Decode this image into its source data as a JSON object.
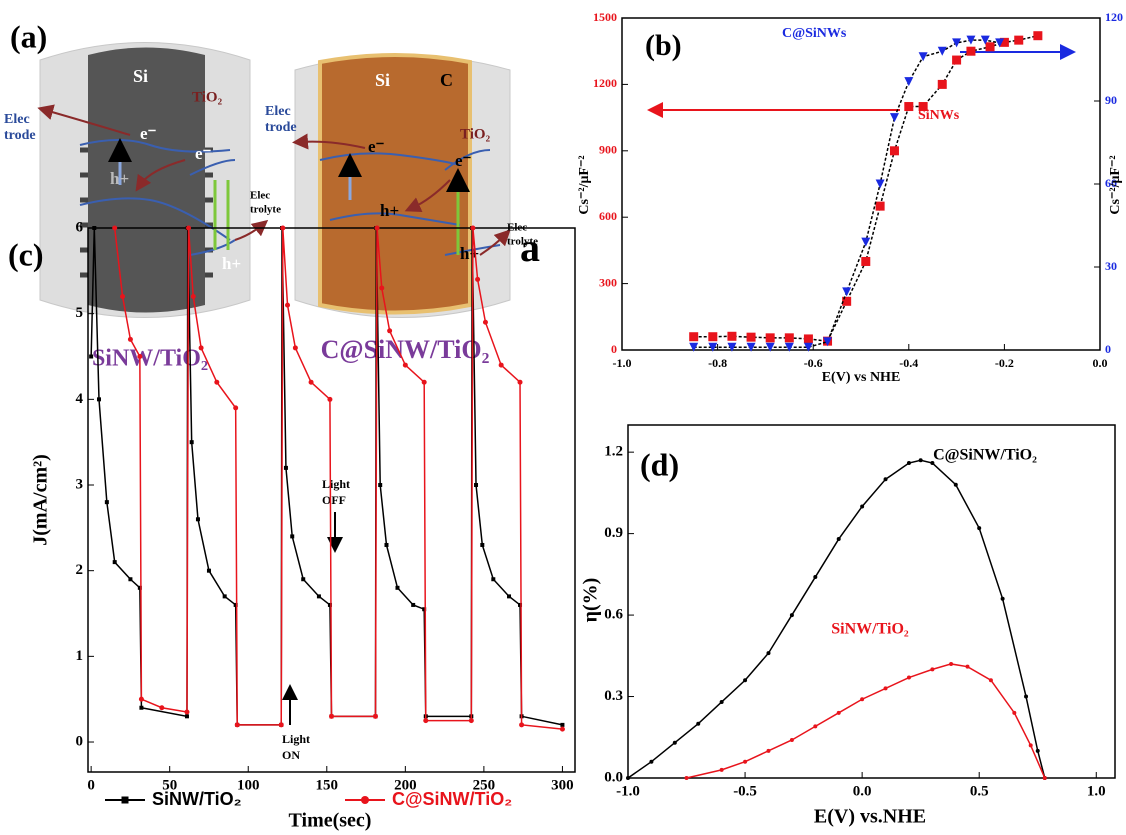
{
  "diagram": {
    "label": "(a)",
    "cylinders": [
      {
        "core": "Si",
        "shell": "TiO₂",
        "electrode": [
          "Elec",
          "trode"
        ],
        "electrolyte": [
          "Elec",
          "trolyte"
        ],
        "electrons": [
          "e⁻",
          "e⁻"
        ],
        "holes": [
          "h+",
          "h+"
        ],
        "caption": "SiNW/TiO₂"
      },
      {
        "core": "Si",
        "coating": "C",
        "shell": "TiO₂",
        "electrode": [
          "Elec",
          "trode"
        ],
        "electrolyte": [
          "Elec",
          "trolyte"
        ],
        "electrons": [
          "e⁻",
          "e⁻"
        ],
        "holes": [
          "h+",
          "h+"
        ],
        "caption": "C@SiNW/TiO₂"
      }
    ]
  },
  "chart_data": [
    {
      "type": "scatter-line",
      "xlabel": "E(V) vs NHE",
      "ylabel": "Cs⁻²/μF⁻²",
      "y2label": "Cs⁻²/μF⁻²",
      "annotations": [
        "(b)",
        "C@SiNWs",
        "SiNWs"
      ],
      "xlim": [
        -1,
        0
      ],
      "ylim": [
        0,
        1500
      ],
      "y2lim": [
        0,
        120
      ],
      "xticks": [
        {
          "value": -1,
          "label": "-1.0"
        },
        -0.8,
        -0.6,
        -0.4,
        -0.2,
        {
          "value": 0,
          "label": "0.0"
        }
      ],
      "yticks": [
        0,
        300,
        600,
        900,
        1200,
        1500
      ],
      "y2ticks": [
        0,
        30,
        60,
        90,
        120
      ],
      "series": [
        {
          "name": "SiNWs",
          "color": "#e8141c",
          "marker": "square",
          "axis": "y",
          "x": [
            -0.85,
            -0.81,
            -0.77,
            -0.73,
            -0.69,
            -0.65,
            -0.61,
            -0.57,
            -0.53,
            -0.49,
            -0.46,
            -0.43,
            -0.4,
            -0.37,
            -0.33,
            -0.3,
            -0.27,
            -0.23,
            -0.2,
            -0.17,
            -0.13
          ],
          "values": [
            60,
            60,
            62,
            58,
            55,
            55,
            50,
            40,
            220,
            400,
            650,
            900,
            1100,
            1100,
            1200,
            1310,
            1350,
            1370,
            1390,
            1400,
            1420
          ]
        },
        {
          "name": "C@SiNWs",
          "color": "#1a2ae0",
          "marker": "triangle",
          "axis": "y2",
          "x": [
            -0.85,
            -0.81,
            -0.77,
            -0.73,
            -0.69,
            -0.65,
            -0.61,
            -0.57,
            -0.53,
            -0.49,
            -0.46,
            -0.43,
            -0.4,
            -0.37,
            -0.33,
            -0.3,
            -0.27,
            -0.24,
            -0.21
          ],
          "values": [
            1,
            1,
            1,
            1,
            1,
            1,
            1,
            3,
            21,
            39,
            60,
            84,
            97,
            106,
            108,
            111,
            112,
            112,
            111
          ]
        }
      ]
    },
    {
      "type": "line",
      "xlabel": "Time(sec)",
      "ylabel": "J(mA/cm²)",
      "legend": "bottom",
      "annotations": [
        "(c)",
        "a",
        "Light",
        "OFF",
        "Light",
        "ON"
      ],
      "xlim": [
        -2,
        308
      ],
      "ylim": [
        -0.35,
        6
      ],
      "xticks": [
        0,
        50,
        100,
        150,
        200,
        250,
        300
      ],
      "yticks": [
        0,
        1,
        2,
        3,
        4,
        5,
        6
      ],
      "series": [
        {
          "name": "SiNW/TiO₂",
          "color": "#000000",
          "marker": "square",
          "x": [
            0,
            2,
            5,
            10,
            15,
            25,
            31,
            32,
            61,
            61.5,
            64,
            68,
            75,
            85,
            92,
            93,
            121,
            121.5,
            124,
            128,
            135,
            145,
            152,
            153,
            181,
            181.5,
            184,
            188,
            195,
            205,
            212,
            213,
            242,
            242.5,
            245,
            249,
            256,
            266,
            273,
            274,
            300
          ],
          "values": [
            4.5,
            6,
            4,
            2.8,
            2.1,
            1.9,
            1.8,
            0.4,
            0.3,
            6,
            3.5,
            2.6,
            2,
            1.7,
            1.6,
            0.2,
            0.2,
            6,
            3.2,
            2.4,
            1.9,
            1.7,
            1.6,
            0.3,
            0.3,
            6,
            3,
            2.3,
            1.8,
            1.6,
            1.55,
            0.3,
            0.3,
            6,
            3,
            2.3,
            1.9,
            1.7,
            1.6,
            0.3,
            0.2
          ]
        },
        {
          "name": "C@SiNW/TiO₂",
          "color": "#e8141c",
          "marker": "circle",
          "x": [
            15,
            20,
            25,
            31,
            32,
            45,
            61,
            62,
            65,
            70,
            80,
            92,
            93,
            121,
            122,
            125,
            130,
            140,
            152,
            153,
            181,
            182,
            185,
            190,
            200,
            212,
            213,
            242,
            243,
            246,
            251,
            261,
            273,
            274,
            300
          ],
          "values": [
            6,
            5.2,
            4.7,
            4.5,
            0.5,
            0.4,
            0.35,
            6,
            5.2,
            4.6,
            4.2,
            3.9,
            0.2,
            0.2,
            6,
            5.1,
            4.6,
            4.2,
            4,
            0.3,
            0.3,
            6,
            5.3,
            4.8,
            4.4,
            4.2,
            0.25,
            0.25,
            6,
            5.4,
            4.9,
            4.4,
            4.2,
            0.2,
            0.15
          ]
        }
      ]
    },
    {
      "type": "line",
      "xlabel": "E(V) vs.NHE",
      "ylabel": "η(%)",
      "annotations": [
        "(d)"
      ],
      "xlim": [
        -1,
        1.08
      ],
      "ylim": [
        0,
        1.3
      ],
      "xticks": [
        {
          "value": -1,
          "label": "-1.0"
        },
        -0.5,
        {
          "value": 0,
          "label": "0.0"
        },
        0.5,
        {
          "value": 1,
          "label": "1.0"
        }
      ],
      "yticks": [
        {
          "value": 0,
          "label": "0.0"
        },
        0.3,
        0.6,
        0.9,
        1.2
      ],
      "series": [
        {
          "name": "C@SiNW/TiO₂",
          "color": "#000000",
          "marker": "circle",
          "x": [
            -1,
            -0.9,
            -0.8,
            -0.7,
            -0.6,
            -0.5,
            -0.4,
            -0.3,
            -0.2,
            -0.1,
            0,
            0.1,
            0.2,
            0.25,
            0.3,
            0.4,
            0.5,
            0.6,
            0.7,
            0.75,
            0.78
          ],
          "values": [
            0,
            0.06,
            0.13,
            0.2,
            0.28,
            0.36,
            0.46,
            0.6,
            0.74,
            0.88,
            1,
            1.1,
            1.16,
            1.17,
            1.16,
            1.08,
            0.92,
            0.66,
            0.3,
            0.1,
            0
          ]
        },
        {
          "name": "SiNW/TiO₂",
          "color": "#e8141c",
          "marker": "circle",
          "x": [
            -0.75,
            -0.6,
            -0.5,
            -0.4,
            -0.3,
            -0.2,
            -0.1,
            0,
            0.1,
            0.2,
            0.3,
            0.38,
            0.45,
            0.55,
            0.65,
            0.72,
            0.78
          ],
          "values": [
            0,
            0.03,
            0.06,
            0.1,
            0.14,
            0.19,
            0.24,
            0.29,
            0.33,
            0.37,
            0.4,
            0.42,
            0.41,
            0.36,
            0.24,
            0.12,
            0
          ]
        }
      ]
    }
  ]
}
